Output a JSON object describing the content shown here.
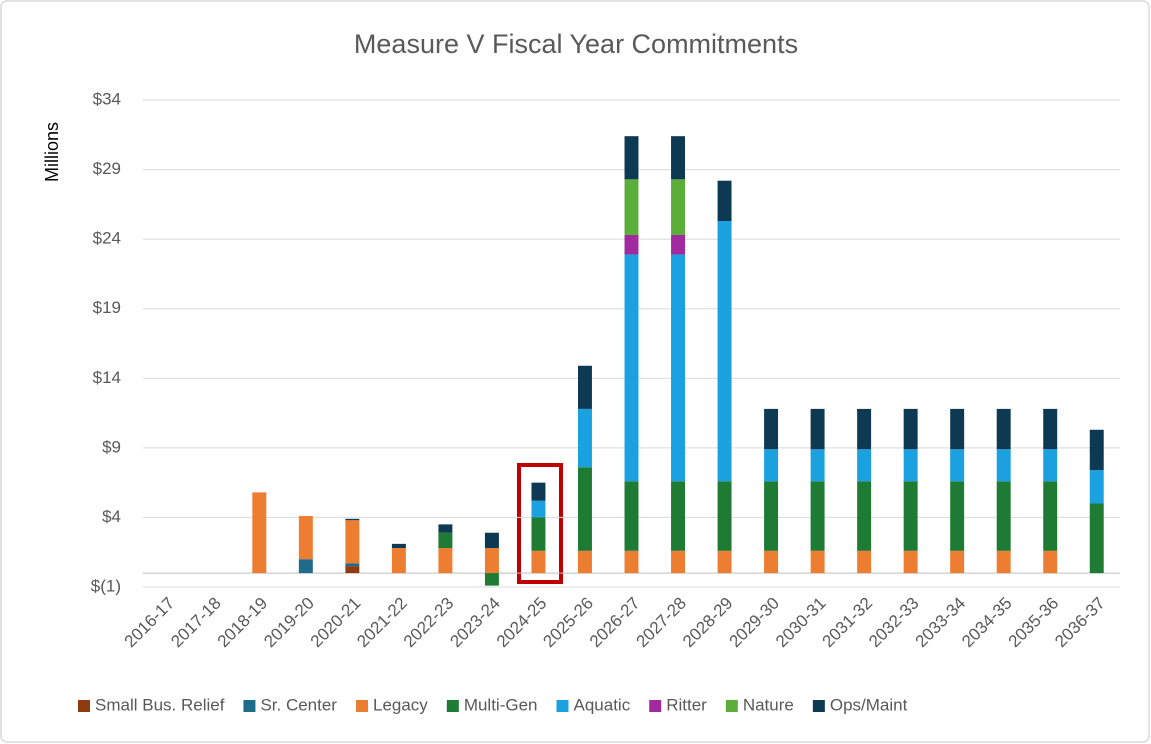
{
  "chart_data": {
    "type": "bar",
    "stacked": true,
    "title": "Measure V Fiscal Year Commitments",
    "y_label": "Millions",
    "categories": [
      "2016-17",
      "2017-18",
      "2018-19",
      "2019-20",
      "2020-21",
      "2021-22",
      "2022-23",
      "2023-24",
      "2024-25",
      "2025-26",
      "2026-27",
      "2027-28",
      "2028-29",
      "2029-30",
      "2030-31",
      "2031-32",
      "2032-33",
      "2033-34",
      "2034-35",
      "2035-36",
      "2036-37"
    ],
    "series": [
      {
        "name": "Small Bus. Relief",
        "color": "#8e3b12",
        "values": [
          0,
          0,
          0,
          0,
          0.5,
          0,
          0,
          0,
          0,
          0,
          0,
          0,
          0,
          0,
          0,
          0,
          0,
          0,
          0,
          0,
          0
        ]
      },
      {
        "name": "Sr. Center",
        "color": "#1f6b8a",
        "values": [
          0,
          0,
          0,
          1.0,
          0.2,
          0,
          0,
          0,
          0,
          0,
          0,
          0,
          0,
          0,
          0,
          0,
          0,
          0,
          0,
          0,
          0
        ]
      },
      {
        "name": "Legacy",
        "color": "#ed7d31",
        "values": [
          0,
          0,
          5.8,
          3.1,
          3.1,
          1.8,
          1.8,
          1.8,
          1.6,
          1.6,
          1.6,
          1.6,
          1.6,
          1.6,
          1.6,
          1.6,
          1.6,
          1.6,
          1.6,
          1.6,
          0
        ]
      },
      {
        "name": "Multi-Gen",
        "color": "#1e7b34",
        "values": [
          0,
          0,
          0,
          0,
          0,
          0,
          1.1,
          -0.9,
          2.4,
          6.0,
          5.0,
          5.0,
          5.0,
          5.0,
          5.0,
          5.0,
          5.0,
          5.0,
          5.0,
          5.0,
          5.0
        ]
      },
      {
        "name": "Aquatic",
        "color": "#1ba1df",
        "values": [
          0,
          0,
          0,
          0,
          0,
          0,
          0,
          0,
          1.2,
          4.2,
          16.3,
          16.3,
          18.7,
          2.3,
          2.3,
          2.3,
          2.3,
          2.3,
          2.3,
          2.3,
          2.4
        ]
      },
      {
        "name": "Ritter",
        "color": "#a12aa1",
        "values": [
          0,
          0,
          0,
          0,
          0,
          0,
          0,
          0,
          0,
          0,
          1.4,
          1.4,
          0,
          0,
          0,
          0,
          0,
          0,
          0,
          0,
          0
        ]
      },
      {
        "name": "Nature",
        "color": "#5bae3a",
        "values": [
          0,
          0,
          0,
          0,
          0,
          0,
          0,
          0,
          0,
          0,
          4.0,
          4.0,
          0,
          0,
          0,
          0,
          0,
          0,
          0,
          0,
          0
        ]
      },
      {
        "name": "Ops/Maint",
        "color": "#0d3a52",
        "values": [
          0,
          0,
          0,
          0,
          0.1,
          0.3,
          0.6,
          1.1,
          1.3,
          3.1,
          3.1,
          3.1,
          2.9,
          2.9,
          2.9,
          2.9,
          2.9,
          2.9,
          2.9,
          2.9,
          2.9
        ]
      }
    ],
    "ylim": [
      -1,
      34
    ],
    "yticks": [
      {
        "value": -1,
        "label": "$(1)"
      },
      {
        "value": 4,
        "label": "$4"
      },
      {
        "value": 9,
        "label": "$9"
      },
      {
        "value": 14,
        "label": "$14"
      },
      {
        "value": 19,
        "label": "$19"
      },
      {
        "value": 24,
        "label": "$24"
      },
      {
        "value": 29,
        "label": "$29"
      },
      {
        "value": 34,
        "label": "$34"
      }
    ],
    "grid": true,
    "legend": "bottom"
  }
}
